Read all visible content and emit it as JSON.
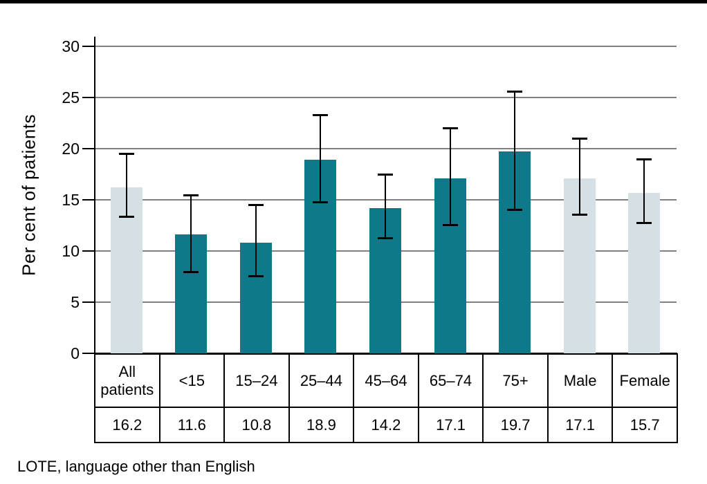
{
  "page": {
    "background": "#ffffff",
    "top_bar_color": "#000000"
  },
  "chart_data": {
    "type": "bar",
    "title": "",
    "xlabel": "",
    "ylabel": "Per cent of patients",
    "ylim": [
      0,
      30
    ],
    "yticks": [
      0,
      5,
      10,
      15,
      20,
      25,
      30
    ],
    "grid": true,
    "legend": "none",
    "categories": [
      "All patients",
      "<15",
      "15–24",
      "25–44",
      "45–64",
      "65–74",
      "75+",
      "Male",
      "Female"
    ],
    "values": [
      16.2,
      11.6,
      10.8,
      18.9,
      14.2,
      17.1,
      19.7,
      17.1,
      15.7
    ],
    "error_bars": {
      "low": [
        13.3,
        7.9,
        7.5,
        14.7,
        11.2,
        12.5,
        14.0,
        13.5,
        12.7
      ],
      "high": [
        19.5,
        15.5,
        14.5,
        23.3,
        17.5,
        22.0,
        25.6,
        21.0,
        19.0
      ]
    },
    "bar_color_groups": [
      "muted",
      "highlight",
      "highlight",
      "highlight",
      "highlight",
      "highlight",
      "highlight",
      "muted",
      "muted"
    ],
    "colors": {
      "highlight": "#0e7a89",
      "muted": "#d5e0e4",
      "gridline": "#7f7f7f",
      "axis": "#000000",
      "error_bar": "#000000"
    }
  },
  "table": {
    "category_row": [
      "All patients",
      "<15",
      "15–24",
      "25–44",
      "45–64",
      "65–74",
      "75+",
      "Male",
      "Female"
    ],
    "value_row": [
      "16.2",
      "11.6",
      "10.8",
      "18.9",
      "14.2",
      "17.1",
      "19.7",
      "17.1",
      "15.7"
    ]
  },
  "footnote": "LOTE, language other than English"
}
